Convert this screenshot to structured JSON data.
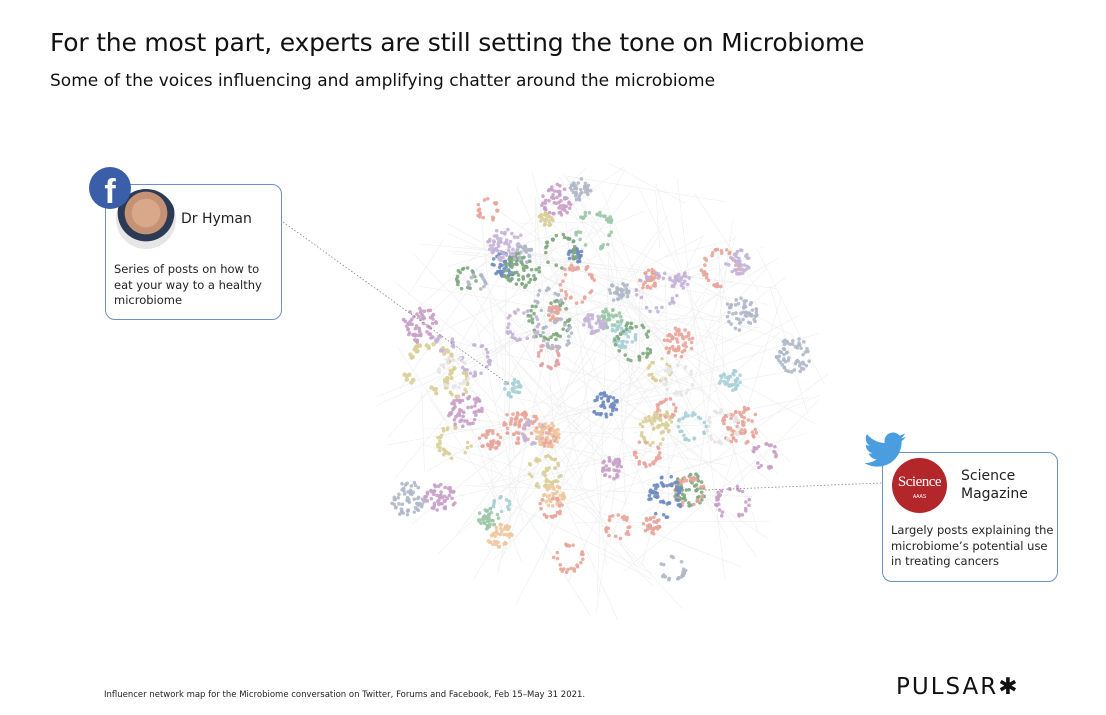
{
  "header": {
    "title": "For the most part, experts are still setting the tone on Microbiome",
    "subtitle": "Some of the voices influencing and amplifying chatter around the microbiome"
  },
  "callouts": [
    {
      "platform": "facebook-icon",
      "name": "Dr Hyman",
      "description": "Series of posts on how to eat your way to a healthy microbiome"
    },
    {
      "platform": "twitter-icon",
      "name": "Science Magazine",
      "logo_text": "Science",
      "logo_subtext": "AAAS",
      "description": "Largely posts explaining the microbiome’s potential use in treating cancers"
    }
  ],
  "footer": {
    "caption": "Influencer network map for the Microbiome conversation on Twitter, Forums and Facebook, Feb 15–May 31 2021.",
    "brand": "PULSAR✱"
  },
  "colors": {
    "card_border": "#6f8fc7",
    "facebook": "#3b5ea8",
    "twitter": "#4a9ee0",
    "science": "#b3262a"
  }
}
